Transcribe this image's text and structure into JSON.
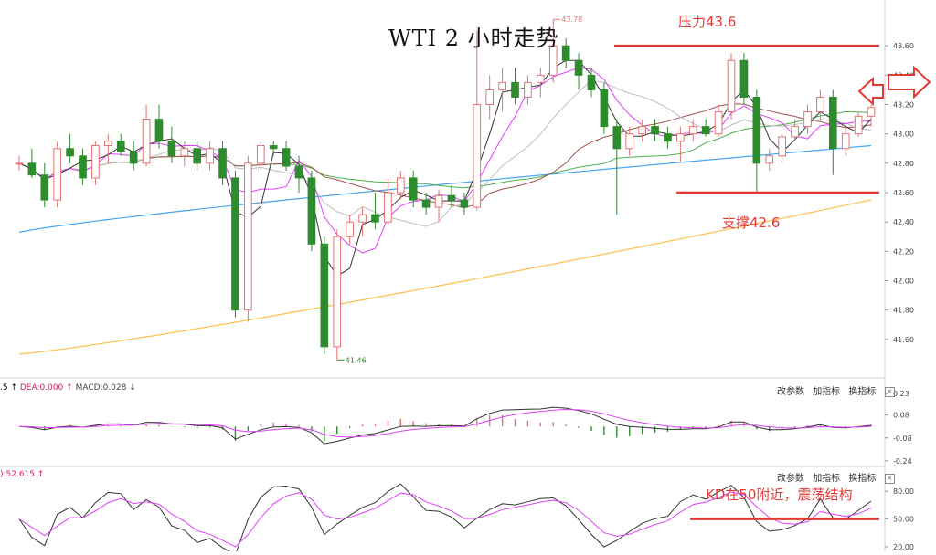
{
  "title": "WTI 2 小时走势",
  "annotations": {
    "resistance": "压力43.6",
    "support": "支撑42.6",
    "kd_note": "KD在50附近，震荡结构",
    "high_label": "43.78",
    "low_label": "41.46"
  },
  "macd_panel": {
    "lead": ".5 ↑",
    "dea": "DEA:0.000 ↑",
    "macd": "MACD:0.028 ↓"
  },
  "kd_panel": {
    "lead": "):52.615 ↑"
  },
  "controls": {
    "params": "改参数",
    "add": "加指标",
    "swap": "换指标",
    "close": "×"
  },
  "colors": {
    "up": "#e57373",
    "down": "#2e8b2e",
    "red_line": "#e53935",
    "ma_black": "#333333",
    "ma_pink": "#e040fb",
    "ma_gray": "#bdbdbd",
    "ma_brown": "#a0524d",
    "ma_green": "#4caf50",
    "ma_blue": "#42a5f5",
    "ma_orange": "#ffc04d"
  },
  "chart_data": [
    {
      "type": "candlestick",
      "title": "WTI 2 小时走势",
      "y_ticks": [
        "43.60",
        "43.40",
        "43.20",
        "43.00",
        "42.80",
        "42.60",
        "42.40",
        "42.20",
        "42.00",
        "41.80",
        "41.60"
      ],
      "ylim": [
        41.4,
        43.8
      ],
      "resistance": 43.6,
      "support": 42.6,
      "high": 43.78,
      "low": 41.46,
      "candles_ohlc": [
        [
          42.8,
          42.85,
          42.75,
          42.8
        ],
        [
          42.8,
          42.9,
          42.7,
          42.72
        ],
        [
          42.72,
          42.8,
          42.5,
          42.55
        ],
        [
          42.55,
          42.95,
          42.5,
          42.9
        ],
        [
          42.9,
          43.0,
          42.8,
          42.85
        ],
        [
          42.85,
          42.9,
          42.65,
          42.7
        ],
        [
          42.7,
          42.95,
          42.65,
          42.92
        ],
        [
          42.92,
          43.0,
          42.8,
          42.95
        ],
        [
          42.95,
          43.0,
          42.85,
          42.88
        ],
        [
          42.88,
          42.95,
          42.75,
          42.8
        ],
        [
          42.8,
          43.2,
          42.78,
          43.1
        ],
        [
          43.1,
          43.2,
          42.9,
          42.95
        ],
        [
          42.95,
          43.05,
          42.8,
          42.85
        ],
        [
          42.85,
          42.95,
          42.78,
          42.9
        ],
        [
          42.9,
          42.95,
          42.75,
          42.8
        ],
        [
          42.8,
          42.95,
          42.75,
          42.9
        ],
        [
          42.9,
          42.95,
          42.65,
          42.7
        ],
        [
          42.7,
          42.75,
          41.75,
          41.8
        ],
        [
          41.8,
          42.85,
          41.72,
          42.8
        ],
        [
          42.8,
          42.95,
          42.75,
          42.92
        ],
        [
          42.92,
          42.95,
          42.85,
          42.9
        ],
        [
          42.9,
          42.95,
          42.75,
          42.78
        ],
        [
          42.78,
          42.85,
          42.6,
          42.7
        ],
        [
          42.7,
          42.75,
          42.2,
          42.25
        ],
        [
          42.25,
          42.3,
          41.5,
          41.55
        ],
        [
          41.55,
          42.35,
          41.46,
          42.3
        ],
        [
          42.3,
          42.45,
          42.25,
          42.4
        ],
        [
          42.4,
          42.5,
          42.3,
          42.45
        ],
        [
          42.45,
          42.6,
          42.35,
          42.4
        ],
        [
          42.4,
          42.7,
          42.38,
          42.6
        ],
        [
          42.6,
          42.75,
          42.55,
          42.7
        ],
        [
          42.7,
          42.75,
          42.5,
          42.55
        ],
        [
          42.55,
          42.6,
          42.45,
          42.5
        ],
        [
          42.5,
          42.62,
          42.4,
          42.58
        ],
        [
          42.58,
          42.65,
          42.5,
          42.55
        ],
        [
          42.55,
          42.6,
          42.45,
          42.5
        ],
        [
          42.5,
          43.7,
          42.48,
          43.2
        ],
        [
          43.2,
          43.4,
          43.1,
          43.3
        ],
        [
          43.3,
          43.45,
          43.15,
          43.35
        ],
        [
          43.35,
          43.45,
          43.2,
          43.25
        ],
        [
          43.25,
          43.4,
          43.2,
          43.35
        ],
        [
          43.35,
          43.45,
          43.25,
          43.4
        ],
        [
          43.4,
          43.78,
          43.35,
          43.6
        ],
        [
          43.6,
          43.65,
          43.45,
          43.5
        ],
        [
          43.5,
          43.55,
          43.3,
          43.4
        ],
        [
          43.4,
          43.45,
          43.25,
          43.3
        ],
        [
          43.3,
          43.35,
          43.0,
          43.05
        ],
        [
          43.05,
          43.1,
          42.45,
          42.9
        ],
        [
          42.9,
          43.05,
          42.85,
          43.0
        ],
        [
          43.0,
          43.1,
          42.95,
          43.05
        ],
        [
          43.05,
          43.1,
          42.95,
          43.0
        ],
        [
          43.0,
          43.05,
          42.9,
          42.95
        ],
        [
          42.95,
          43.05,
          42.8,
          43.0
        ],
        [
          43.0,
          43.1,
          42.95,
          43.05
        ],
        [
          43.05,
          43.1,
          42.98,
          43.0
        ],
        [
          43.0,
          43.2,
          42.98,
          43.15
        ],
        [
          43.15,
          43.55,
          43.1,
          43.5
        ],
        [
          43.5,
          43.55,
          43.2,
          43.25
        ],
        [
          43.25,
          43.3,
          42.6,
          42.8
        ],
        [
          42.8,
          42.9,
          42.75,
          42.85
        ],
        [
          42.85,
          43.0,
          42.8,
          42.98
        ],
        [
          42.98,
          43.1,
          42.95,
          43.05
        ],
        [
          43.05,
          43.2,
          43.0,
          43.15
        ],
        [
          43.15,
          43.3,
          43.1,
          43.25
        ],
        [
          43.25,
          43.3,
          42.72,
          42.9
        ],
        [
          42.9,
          43.05,
          42.85,
          43.0
        ],
        [
          43.0,
          43.15,
          42.98,
          43.12
        ],
        [
          43.12,
          43.2,
          43.05,
          43.18
        ]
      ]
    },
    {
      "type": "line",
      "title": "MACD",
      "y_ticks": [
        "0.23",
        "0.08",
        "-0.08",
        "-0.24"
      ],
      "ylim": [
        -0.26,
        0.25
      ]
    },
    {
      "type": "line",
      "title": "KD",
      "y_ticks": [
        "80.00",
        "50.00",
        "20.00"
      ],
      "ylim": [
        15,
        95
      ],
      "reference_level": 50
    }
  ]
}
